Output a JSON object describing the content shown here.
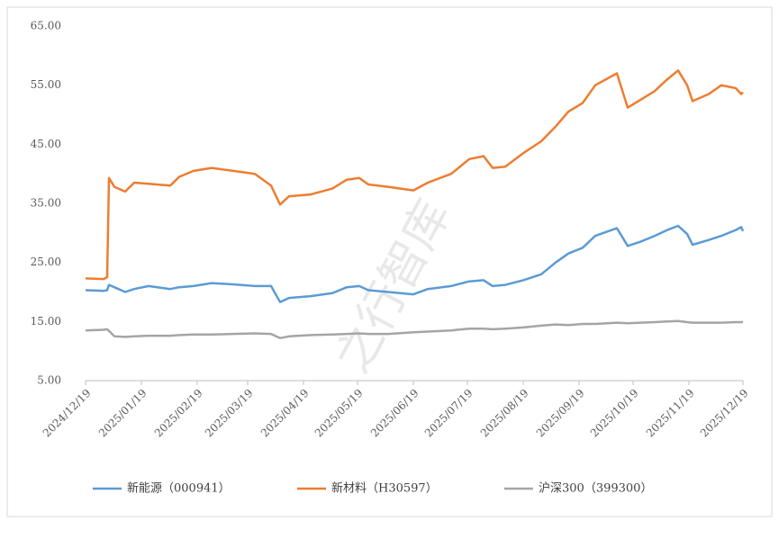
{
  "chart_data": {
    "type": "line",
    "watermark": "之行智库",
    "x": [
      "2024/12/19",
      "2024/12/29",
      "2024/12/31",
      "2025/01/01",
      "2025/01/04",
      "2025/01/10",
      "2025/01/15",
      "2025/01/23",
      "2025/02/04",
      "2025/02/09",
      "2025/02/17",
      "2025/02/27",
      "2025/03/11",
      "2025/03/23",
      "2025/04/01",
      "2025/04/06",
      "2025/04/11",
      "2025/04/23",
      "2025/05/05",
      "2025/05/13",
      "2025/05/20",
      "2025/05/25",
      "2025/06/05",
      "2025/06/19",
      "2025/06/27",
      "2025/07/10",
      "2025/07/20",
      "2025/07/28",
      "2025/08/02",
      "2025/08/09",
      "2025/08/19",
      "2025/08/29",
      "2025/09/06",
      "2025/09/13",
      "2025/09/21",
      "2025/09/28",
      "2025/10/10",
      "2025/10/16",
      "2025/10/23",
      "2025/10/31",
      "2025/11/07",
      "2025/11/13",
      "2025/11/18",
      "2025/11/21",
      "2025/11/30",
      "2025/12/07",
      "2025/12/15",
      "2025/12/18",
      "2025/12/19"
    ],
    "series": [
      {
        "name": "新能源（000941）",
        "color": "#5b9bd5",
        "values": [
          20.3,
          20.2,
          20.3,
          21.2,
          20.8,
          20.0,
          20.5,
          21.0,
          20.5,
          20.8,
          21.0,
          21.5,
          21.3,
          21.0,
          21.0,
          18.3,
          19.0,
          19.3,
          19.8,
          20.8,
          21.0,
          20.3,
          20.0,
          19.6,
          20.5,
          21.0,
          21.8,
          22.0,
          21.0,
          21.2,
          22.0,
          23.0,
          25.0,
          26.5,
          27.5,
          29.5,
          30.8,
          27.8,
          28.5,
          29.5,
          30.5,
          31.2,
          29.8,
          28.0,
          28.8,
          29.5,
          30.5,
          31.0,
          30.3
        ]
      },
      {
        "name": "新材料（H30597）",
        "color": "#ed7d31",
        "values": [
          22.3,
          22.2,
          22.5,
          39.3,
          37.8,
          37.0,
          38.5,
          38.3,
          38.0,
          39.5,
          40.5,
          41.0,
          40.5,
          40.0,
          38.0,
          34.8,
          36.2,
          36.5,
          37.5,
          39.0,
          39.3,
          38.2,
          37.8,
          37.2,
          38.5,
          40.0,
          42.5,
          43.0,
          41.0,
          41.2,
          43.5,
          45.5,
          48.0,
          50.5,
          52.0,
          55.0,
          57.0,
          51.2,
          52.5,
          54.0,
          56.0,
          57.5,
          55.0,
          52.3,
          53.5,
          55.0,
          54.5,
          53.5,
          53.8
        ]
      },
      {
        "name": "沪深300（399300）",
        "color": "#a5a5a5",
        "values": [
          13.5,
          13.6,
          13.7,
          13.4,
          12.5,
          12.4,
          12.5,
          12.6,
          12.6,
          12.7,
          12.8,
          12.8,
          12.9,
          13.0,
          12.9,
          12.2,
          12.5,
          12.7,
          12.8,
          12.9,
          13.0,
          12.9,
          12.9,
          13.2,
          13.3,
          13.5,
          13.8,
          13.8,
          13.7,
          13.8,
          14.0,
          14.3,
          14.5,
          14.4,
          14.6,
          14.6,
          14.8,
          14.7,
          14.8,
          14.9,
          15.0,
          15.1,
          14.9,
          14.8,
          14.8,
          14.8,
          14.9,
          14.9,
          14.9
        ]
      }
    ],
    "xlim": [
      "2024/12/19",
      "2025/12/19"
    ],
    "xticks": [
      "2024/12/19",
      "2025/01/19",
      "2025/02/19",
      "2025/03/19",
      "2025/04/19",
      "2025/05/19",
      "2025/06/19",
      "2025/07/19",
      "2025/08/19",
      "2025/09/19",
      "2025/10/19",
      "2025/11/19",
      "2025/12/19"
    ],
    "ylim": [
      5,
      65
    ],
    "yticks": [
      {
        "value": 5,
        "label": "5.00"
      },
      {
        "value": 15,
        "label": "15.00"
      },
      {
        "value": 25,
        "label": "25.00"
      },
      {
        "value": 35,
        "label": "35.00"
      },
      {
        "value": 45,
        "label": "45.00"
      },
      {
        "value": 55,
        "label": "55.00"
      },
      {
        "value": 65,
        "label": "65.00"
      }
    ],
    "grid": false,
    "legend": "bottom"
  }
}
